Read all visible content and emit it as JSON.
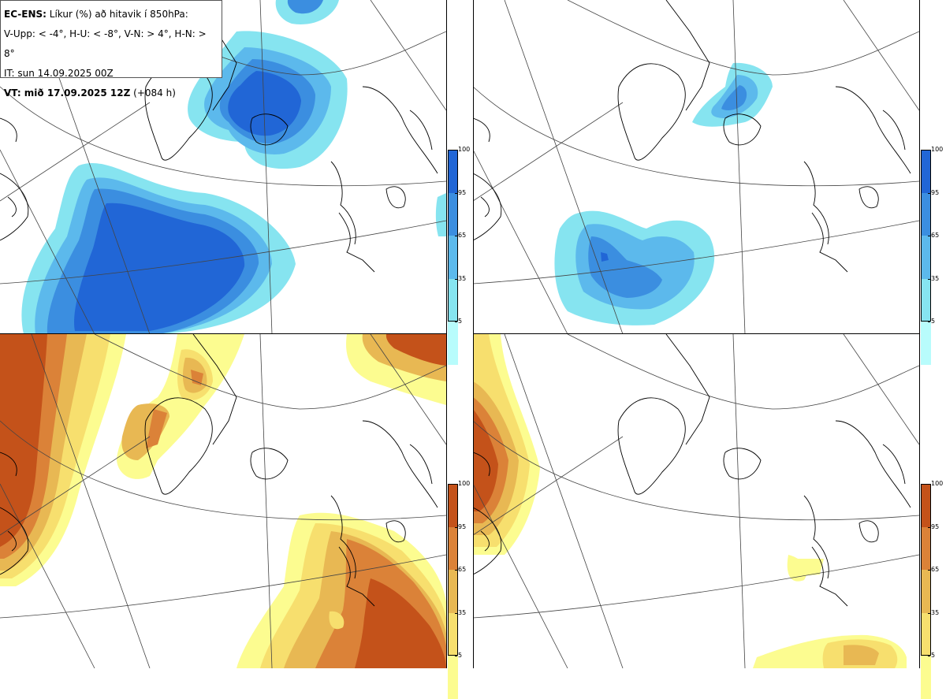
{
  "info": {
    "line1_bold": "EC-ENS:",
    "line1_rest": "Líkur (%) að hitavik í 850hPa:",
    "line2": "V-Upp: < -4°, H-U: < -8°, V-N: > 4°, H-N: > 8°",
    "line3": "IT: sun 14.09.2025 00Z",
    "line4_bold": "VT: mið 17.09.2025 12Z",
    "line4_rest": "(+084 h)"
  },
  "colorbars": {
    "ticks": [
      "100",
      "95",
      "65",
      "35",
      "5"
    ],
    "blue": [
      "#2166d6",
      "#3b8ee0",
      "#5cb9ec",
      "#86e4f0",
      "#b8fcfc"
    ],
    "orange": [
      "#c4521a",
      "#db8238",
      "#e8b853",
      "#f7df6e",
      "#fcfc90"
    ]
  },
  "panels": [
    {
      "name": "top-left",
      "palette": "blue"
    },
    {
      "name": "top-right",
      "palette": "blue"
    },
    {
      "name": "bottom-left",
      "palette": "orange"
    },
    {
      "name": "bottom-right",
      "palette": "orange"
    }
  ]
}
